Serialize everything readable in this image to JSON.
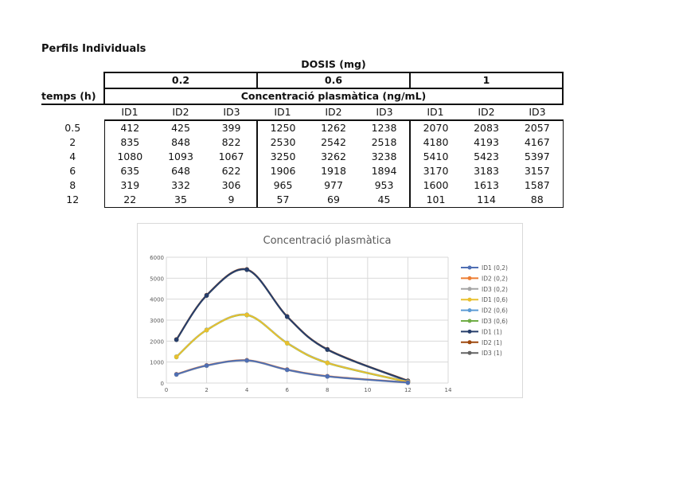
{
  "sheet_title": "Perfils Individuals",
  "table": {
    "dose_header": "DOSIS (mg)",
    "doses": [
      "0.2",
      "0.6",
      "1"
    ],
    "time_header": "temps (h)",
    "conc_header": "Concentració plasmàtica (ng/mL)",
    "ids": [
      "ID1",
      "ID2",
      "ID3",
      "ID1",
      "ID2",
      "ID3",
      "ID1",
      "ID2",
      "ID3"
    ],
    "rows": [
      [
        "0.5",
        "412",
        "425",
        "399",
        "1250",
        "1262",
        "1238",
        "2070",
        "2083",
        "2057"
      ],
      [
        "2",
        "835",
        "848",
        "822",
        "2530",
        "2542",
        "2518",
        "4180",
        "4193",
        "4167"
      ],
      [
        "4",
        "1080",
        "1093",
        "1067",
        "3250",
        "3262",
        "3238",
        "5410",
        "5423",
        "5397"
      ],
      [
        "6",
        "635",
        "648",
        "622",
        "1906",
        "1918",
        "1894",
        "3170",
        "3183",
        "3157"
      ],
      [
        "8",
        "319",
        "332",
        "306",
        "965",
        "977",
        "953",
        "1600",
        "1613",
        "1587"
      ],
      [
        "12",
        "22",
        "35",
        "9",
        "57",
        "69",
        "45",
        "101",
        "114",
        "88"
      ]
    ]
  },
  "chart_data": {
    "type": "line",
    "title": "Concentració plasmàtica",
    "xlabel": "",
    "ylabel": "",
    "xlim": [
      0,
      14
    ],
    "ylim": [
      0,
      6000
    ],
    "xticks": [
      "0",
      "2",
      "4",
      "6",
      "8",
      "10",
      "12",
      "14"
    ],
    "yticks": [
      "0",
      "1000",
      "2000",
      "3000",
      "4000",
      "5000",
      "6000"
    ],
    "grid": true,
    "legend": "right",
    "smooth": true,
    "x": [
      0.5,
      2,
      4,
      6,
      8,
      12
    ],
    "series": [
      {
        "name": "ID1 (0,2)",
        "color": "#4f6fb3",
        "values": [
          412,
          835,
          1080,
          635,
          319,
          22
        ]
      },
      {
        "name": "ID2 (0,2)",
        "color": "#ed7d31",
        "values": [
          425,
          848,
          1093,
          648,
          332,
          35
        ]
      },
      {
        "name": "ID3 (0,2)",
        "color": "#a5a5a5",
        "values": [
          399,
          822,
          1067,
          622,
          306,
          9
        ]
      },
      {
        "name": "ID1 (0,6)",
        "color": "#e8c02f",
        "values": [
          1250,
          2530,
          3250,
          1906,
          965,
          57
        ]
      },
      {
        "name": "ID2 (0,6)",
        "color": "#5b9bd5",
        "values": [
          1262,
          2542,
          3262,
          1918,
          977,
          69
        ]
      },
      {
        "name": "ID3 (0,6)",
        "color": "#70ad47",
        "values": [
          1238,
          2518,
          3238,
          1894,
          953,
          45
        ]
      },
      {
        "name": "ID1 (1)",
        "color": "#263e6b",
        "values": [
          2070,
          4180,
          5410,
          3170,
          1600,
          101
        ]
      },
      {
        "name": "ID2 (1)",
        "color": "#9e480e",
        "values": [
          2083,
          4193,
          5423,
          3183,
          1613,
          114
        ]
      },
      {
        "name": "ID3 (1)",
        "color": "#636363",
        "values": [
          2057,
          4167,
          5397,
          3157,
          1587,
          88
        ]
      }
    ]
  }
}
